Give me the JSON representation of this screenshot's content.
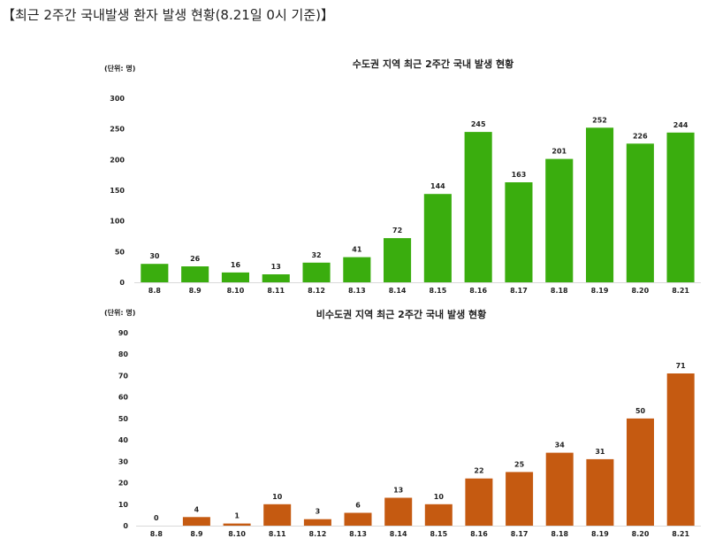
{
  "page": {
    "title": "【최근 2주간 국내발생 환자 발생 현황(8.21일 0시 기준)】"
  },
  "chart_data": [
    {
      "type": "bar",
      "title": "수도권 지역 최근 2주간 국내 발생 현황",
      "unit_label": "(단위: 명)",
      "categories": [
        "8.8",
        "8.9",
        "8.10",
        "8.11",
        "8.12",
        "8.13",
        "8.14",
        "8.15",
        "8.16",
        "8.17",
        "8.18",
        "8.19",
        "8.20",
        "8.21"
      ],
      "values": [
        30,
        26,
        16,
        13,
        32,
        41,
        72,
        144,
        245,
        163,
        201,
        252,
        226,
        244
      ],
      "ylim": [
        0,
        300
      ],
      "yticks": [
        0,
        50,
        100,
        150,
        200,
        250,
        300
      ],
      "color": "#3aad0e",
      "grid": false,
      "legend": "none"
    },
    {
      "type": "bar",
      "title": "비수도권 지역 최근 2주간 국내 발생 현황",
      "unit_label": "(단위: 명)",
      "categories": [
        "8.8",
        "8.9",
        "8.10",
        "8.11",
        "8.12",
        "8.13",
        "8.14",
        "8.15",
        "8.16",
        "8.17",
        "8.18",
        "8.19",
        "8.20",
        "8.21"
      ],
      "values": [
        0,
        4,
        1,
        10,
        3,
        6,
        13,
        10,
        22,
        25,
        34,
        31,
        50,
        71
      ],
      "ylim": [
        0,
        90
      ],
      "yticks": [
        0,
        10,
        20,
        30,
        40,
        50,
        60,
        70,
        80,
        90
      ],
      "color": "#c55a11",
      "grid": false,
      "legend": "none"
    }
  ]
}
